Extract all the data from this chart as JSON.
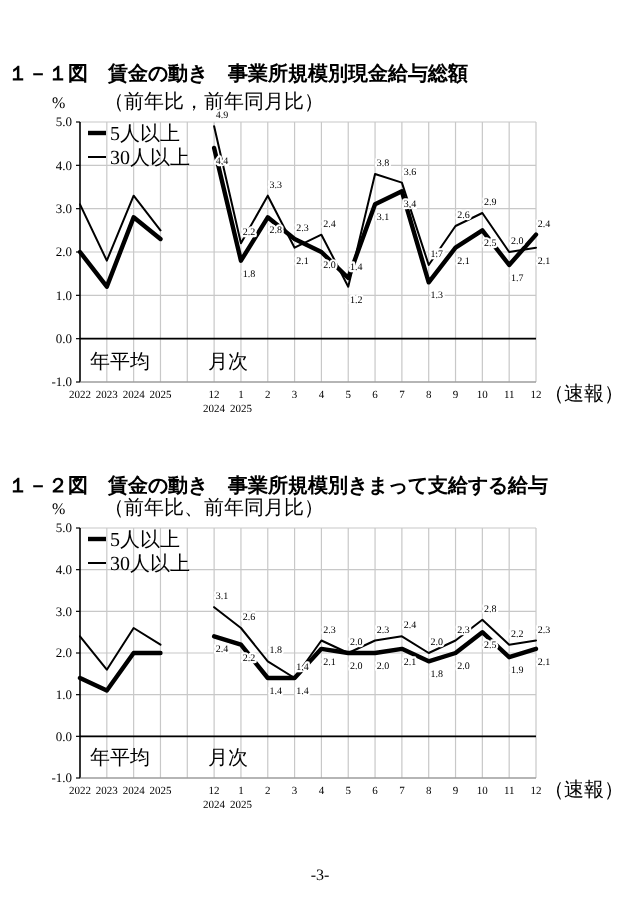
{
  "chart_data": [
    {
      "type": "line",
      "title": "１－１図　賃金の動き　事業所規模別現金給与総額",
      "subtitle": "（前年比，前年同月比）",
      "ylabel": "%",
      "categories": [
        "2022",
        "2023",
        "2024",
        "2025",
        null,
        "12\n2024",
        "1\n2025",
        "2",
        "3",
        "4",
        "5",
        "6",
        "7",
        "8",
        "9",
        "10",
        "11",
        "12"
      ],
      "series": [
        {
          "name": "5人以上",
          "color": "#000000",
          "values": [
            2.0,
            1.2,
            2.8,
            2.3,
            null,
            4.4,
            1.8,
            2.8,
            2.3,
            2.0,
            1.4,
            3.1,
            3.4,
            1.3,
            2.1,
            2.5,
            1.7,
            2.4
          ],
          "value_labels": [
            null,
            null,
            null,
            null,
            null,
            "4.4",
            "1.8",
            "2.8",
            "2.3",
            "2.0",
            "1.4",
            "3.1",
            "3.4",
            "1.3",
            "2.1",
            "2.5",
            "1.7",
            "2.4"
          ]
        },
        {
          "name": "30人以上",
          "color": "#000000",
          "values": [
            3.1,
            1.8,
            3.3,
            2.5,
            null,
            4.9,
            2.2,
            3.3,
            2.1,
            2.4,
            1.2,
            3.8,
            3.6,
            1.7,
            2.6,
            2.9,
            2.0,
            2.1
          ],
          "value_labels": [
            null,
            null,
            null,
            null,
            null,
            "4.9",
            "2.2",
            "3.3",
            "2.1",
            "2.4",
            "1.2",
            "3.8",
            "3.6",
            "1.7",
            "2.6",
            "2.9",
            "2.0",
            "2.1"
          ]
        }
      ],
      "ylim": [
        -1,
        5
      ],
      "yticks": [
        {
          "value": -1,
          "label": "-1.0"
        },
        {
          "value": 0,
          "label": "0.0"
        },
        {
          "value": 1,
          "label": "1.0"
        },
        {
          "value": 2,
          "label": "2.0"
        },
        {
          "value": 3,
          "label": "3.0"
        },
        {
          "value": 4,
          "label": "4.0"
        },
        {
          "value": 5,
          "label": "5.0"
        }
      ],
      "grid": true,
      "legend": "top left",
      "annotations": [
        "年平均",
        "月次",
        "（速報）"
      ]
    },
    {
      "type": "line",
      "title": "１－２図　賃金の動き　事業所規模別きまって支給する給与",
      "subtitle": "（前年比、前年同月比）",
      "ylabel": "%",
      "categories": [
        "2022",
        "2023",
        "2024",
        "2025",
        null,
        "12\n2024",
        "1\n2025",
        "2",
        "3",
        "4",
        "5",
        "6",
        "7",
        "8",
        "9",
        "10",
        "11",
        "12"
      ],
      "series": [
        {
          "name": "5人以上",
          "color": "#000000",
          "values": [
            1.4,
            1.1,
            2.0,
            2.0,
            null,
            2.4,
            2.2,
            1.4,
            1.4,
            2.1,
            2.0,
            2.0,
            2.1,
            1.8,
            2.0,
            2.5,
            1.9,
            2.1
          ],
          "value_labels": [
            null,
            null,
            null,
            null,
            null,
            "2.4",
            "2.2",
            "1.4",
            "1.4",
            "2.1",
            "2.0",
            "2.0",
            "2.1",
            "1.8",
            "2.0",
            "2.5",
            "1.9",
            "2.1"
          ]
        },
        {
          "name": "30人以上",
          "color": "#000000",
          "values": [
            2.4,
            1.6,
            2.6,
            2.2,
            null,
            3.1,
            2.6,
            1.8,
            1.4,
            2.3,
            2.0,
            2.3,
            2.4,
            2.0,
            2.3,
            2.8,
            2.2,
            2.3
          ],
          "value_labels": [
            null,
            null,
            null,
            null,
            null,
            "3.1",
            "2.6",
            "1.8",
            "1.4",
            "2.3",
            "2.0",
            "2.3",
            "2.4",
            "2.0",
            "2.3",
            "2.8",
            "2.2",
            "2.3"
          ]
        }
      ],
      "ylim": [
        -1,
        5
      ],
      "yticks": [
        {
          "value": -1,
          "label": "-1.0"
        },
        {
          "value": 0,
          "label": "0.0"
        },
        {
          "value": 1,
          "label": "1.0"
        },
        {
          "value": 2,
          "label": "2.0"
        },
        {
          "value": 3,
          "label": "3.0"
        },
        {
          "value": 4,
          "label": "4.0"
        },
        {
          "value": 5,
          "label": "5.0"
        }
      ],
      "grid": true,
      "legend": "top left",
      "annotations": [
        "年平均",
        "月次",
        "（速報）",
        "-3-"
      ]
    }
  ]
}
